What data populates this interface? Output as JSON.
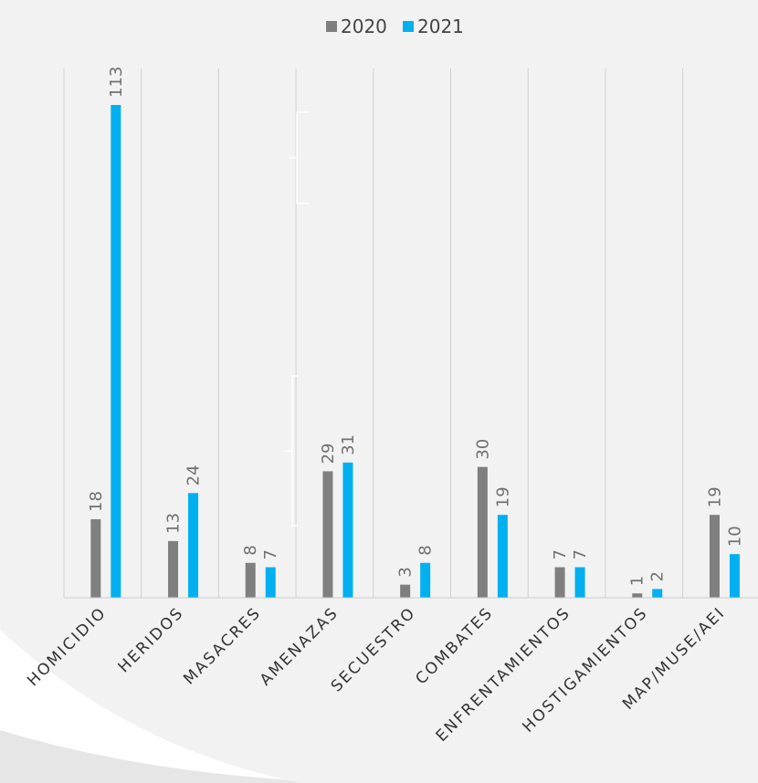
{
  "chart_data": {
    "type": "bar",
    "categories": [
      "HOMICIDIO",
      "HERIDOS",
      "MASACRES",
      "AMENAZAS",
      "SECUESTRO",
      "COMBATES",
      "ENFRENTAMIENTOS",
      "HOSTIGAMIENTOS",
      "MAP/MUSE/AEI"
    ],
    "series": [
      {
        "name": "2020",
        "color": "#7f7f7f",
        "values": [
          18,
          13,
          8,
          29,
          3,
          30,
          7,
          1,
          19
        ]
      },
      {
        "name": "2021",
        "color": "#00b0f0",
        "values": [
          113,
          24,
          7,
          31,
          8,
          19,
          7,
          2,
          10
        ]
      }
    ],
    "ylim": [
      0,
      113
    ],
    "legend_position": "top-center",
    "grid": "vertical category separators"
  }
}
